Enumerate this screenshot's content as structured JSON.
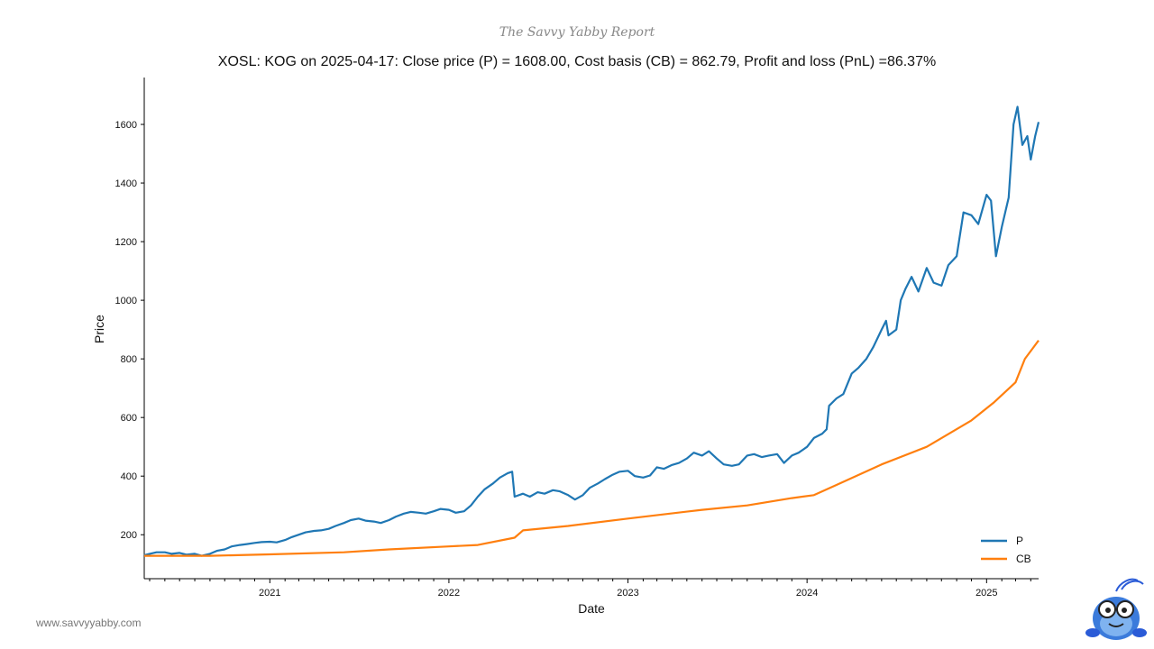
{
  "report_title": "The Savvy Yabby Report",
  "website": "www.savvyyabby.com",
  "colors": {
    "price": "#1f77b4",
    "cost_basis": "#ff7f0e"
  },
  "chart_data": {
    "type": "line",
    "title": "XOSL: KOG on 2025-04-17: Close price (P) = 1608.00, Cost basis (CB) = 862.79, Profit and loss (PnL) =86.37%",
    "xlabel": "Date",
    "ylabel": "Price",
    "xlim": [
      "2020-04-20",
      "2025-04-17"
    ],
    "ylim": [
      50,
      1760
    ],
    "x_ticks": [
      "2021",
      "2022",
      "2023",
      "2024",
      "2025"
    ],
    "y_ticks": [
      200,
      400,
      600,
      800,
      1000,
      1200,
      1400,
      1600
    ],
    "grid": false,
    "legend_position": "bottom-right",
    "series": [
      {
        "name": "P",
        "color": "#1f77b4",
        "points": [
          [
            "2020-04-20",
            130
          ],
          [
            "2020-05-01",
            135
          ],
          [
            "2020-05-15",
            140
          ],
          [
            "2020-06-01",
            140
          ],
          [
            "2020-06-15",
            135
          ],
          [
            "2020-07-01",
            138
          ],
          [
            "2020-07-15",
            132
          ],
          [
            "2020-08-01",
            135
          ],
          [
            "2020-08-15",
            128
          ],
          [
            "2020-09-01",
            135
          ],
          [
            "2020-09-15",
            145
          ],
          [
            "2020-10-01",
            150
          ],
          [
            "2020-10-15",
            160
          ],
          [
            "2020-11-01",
            165
          ],
          [
            "2020-11-15",
            168
          ],
          [
            "2020-12-01",
            172
          ],
          [
            "2020-12-15",
            175
          ],
          [
            "2021-01-01",
            176
          ],
          [
            "2021-01-15",
            174
          ],
          [
            "2021-02-01",
            182
          ],
          [
            "2021-02-15",
            192
          ],
          [
            "2021-03-01",
            200
          ],
          [
            "2021-03-15",
            208
          ],
          [
            "2021-04-01",
            213
          ],
          [
            "2021-04-15",
            215
          ],
          [
            "2021-05-01",
            220
          ],
          [
            "2021-05-15",
            230
          ],
          [
            "2021-06-01",
            240
          ],
          [
            "2021-06-15",
            250
          ],
          [
            "2021-07-01",
            255
          ],
          [
            "2021-07-15",
            248
          ],
          [
            "2021-08-01",
            245
          ],
          [
            "2021-08-15",
            240
          ],
          [
            "2021-09-01",
            250
          ],
          [
            "2021-09-15",
            262
          ],
          [
            "2021-10-01",
            272
          ],
          [
            "2021-10-15",
            278
          ],
          [
            "2021-11-01",
            275
          ],
          [
            "2021-11-15",
            272
          ],
          [
            "2021-12-01",
            280
          ],
          [
            "2021-12-15",
            288
          ],
          [
            "2022-01-01",
            285
          ],
          [
            "2022-01-15",
            275
          ],
          [
            "2022-02-01",
            280
          ],
          [
            "2022-02-15",
            300
          ],
          [
            "2022-03-01",
            330
          ],
          [
            "2022-03-15",
            355
          ],
          [
            "2022-04-01",
            375
          ],
          [
            "2022-04-15",
            395
          ],
          [
            "2022-05-01",
            410
          ],
          [
            "2022-05-10",
            415
          ],
          [
            "2022-05-15",
            330
          ],
          [
            "2022-06-01",
            340
          ],
          [
            "2022-06-15",
            330
          ],
          [
            "2022-07-01",
            345
          ],
          [
            "2022-07-15",
            340
          ],
          [
            "2022-08-01",
            352
          ],
          [
            "2022-08-15",
            348
          ],
          [
            "2022-09-01",
            335
          ],
          [
            "2022-09-15",
            320
          ],
          [
            "2022-10-01",
            335
          ],
          [
            "2022-10-15",
            360
          ],
          [
            "2022-11-01",
            375
          ],
          [
            "2022-11-15",
            390
          ],
          [
            "2022-12-01",
            405
          ],
          [
            "2022-12-15",
            415
          ],
          [
            "2023-01-01",
            418
          ],
          [
            "2023-01-15",
            400
          ],
          [
            "2023-02-01",
            395
          ],
          [
            "2023-02-15",
            402
          ],
          [
            "2023-03-01",
            430
          ],
          [
            "2023-03-15",
            425
          ],
          [
            "2023-04-01",
            438
          ],
          [
            "2023-04-15",
            445
          ],
          [
            "2023-05-01",
            460
          ],
          [
            "2023-05-15",
            480
          ],
          [
            "2023-06-01",
            470
          ],
          [
            "2023-06-15",
            485
          ],
          [
            "2023-07-01",
            460
          ],
          [
            "2023-07-15",
            440
          ],
          [
            "2023-08-01",
            435
          ],
          [
            "2023-08-15",
            440
          ],
          [
            "2023-09-01",
            470
          ],
          [
            "2023-09-15",
            475
          ],
          [
            "2023-10-01",
            465
          ],
          [
            "2023-10-15",
            470
          ],
          [
            "2023-11-01",
            475
          ],
          [
            "2023-11-15",
            445
          ],
          [
            "2023-12-01",
            470
          ],
          [
            "2023-12-15",
            480
          ],
          [
            "2024-01-01",
            500
          ],
          [
            "2024-01-15",
            530
          ],
          [
            "2024-02-01",
            545
          ],
          [
            "2024-02-10",
            560
          ],
          [
            "2024-02-15",
            640
          ],
          [
            "2024-03-01",
            665
          ],
          [
            "2024-03-15",
            680
          ],
          [
            "2024-04-01",
            750
          ],
          [
            "2024-04-15",
            770
          ],
          [
            "2024-05-01",
            800
          ],
          [
            "2024-05-15",
            840
          ],
          [
            "2024-06-01",
            900
          ],
          [
            "2024-06-10",
            930
          ],
          [
            "2024-06-15",
            880
          ],
          [
            "2024-07-01",
            900
          ],
          [
            "2024-07-10",
            1000
          ],
          [
            "2024-07-20",
            1040
          ],
          [
            "2024-08-01",
            1080
          ],
          [
            "2024-08-15",
            1030
          ],
          [
            "2024-09-01",
            1110
          ],
          [
            "2024-09-15",
            1060
          ],
          [
            "2024-10-01",
            1050
          ],
          [
            "2024-10-15",
            1120
          ],
          [
            "2024-11-01",
            1150
          ],
          [
            "2024-11-15",
            1300
          ],
          [
            "2024-12-01",
            1290
          ],
          [
            "2024-12-15",
            1260
          ],
          [
            "2025-01-01",
            1360
          ],
          [
            "2025-01-10",
            1340
          ],
          [
            "2025-01-20",
            1150
          ],
          [
            "2025-02-01",
            1250
          ],
          [
            "2025-02-15",
            1350
          ],
          [
            "2025-02-25",
            1600
          ],
          [
            "2025-03-05",
            1660
          ],
          [
            "2025-03-15",
            1530
          ],
          [
            "2025-03-25",
            1560
          ],
          [
            "2025-04-01",
            1480
          ],
          [
            "2025-04-10",
            1560
          ],
          [
            "2025-04-17",
            1608
          ]
        ]
      },
      {
        "name": "CB",
        "color": "#ff7f0e",
        "points": [
          [
            "2020-04-20",
            128
          ],
          [
            "2020-09-01",
            128
          ],
          [
            "2021-01-01",
            133
          ],
          [
            "2021-06-01",
            140
          ],
          [
            "2021-09-01",
            150
          ],
          [
            "2022-01-01",
            160
          ],
          [
            "2022-03-01",
            165
          ],
          [
            "2022-05-15",
            190
          ],
          [
            "2022-06-01",
            215
          ],
          [
            "2022-09-01",
            230
          ],
          [
            "2023-01-01",
            255
          ],
          [
            "2023-06-01",
            285
          ],
          [
            "2023-09-01",
            300
          ],
          [
            "2023-12-01",
            325
          ],
          [
            "2024-01-15",
            335
          ],
          [
            "2024-03-01",
            370
          ],
          [
            "2024-06-01",
            440
          ],
          [
            "2024-09-01",
            500
          ],
          [
            "2024-12-01",
            590
          ],
          [
            "2025-01-15",
            650
          ],
          [
            "2025-03-01",
            720
          ],
          [
            "2025-03-20",
            800
          ],
          [
            "2025-04-17",
            863
          ]
        ]
      }
    ]
  }
}
